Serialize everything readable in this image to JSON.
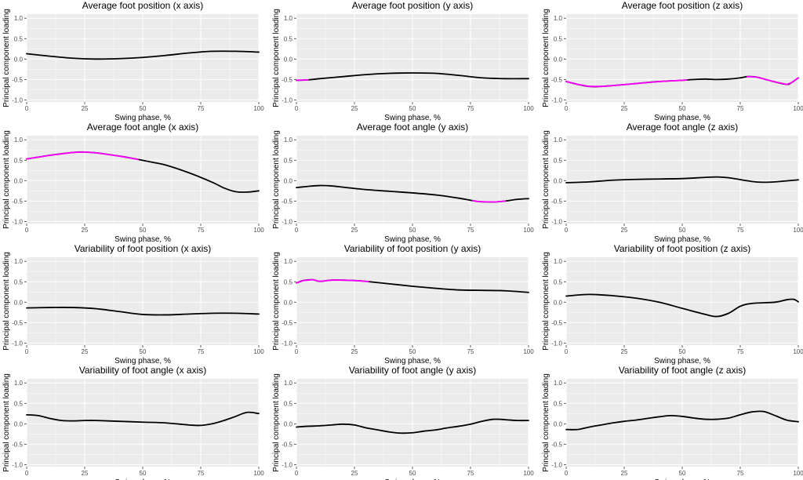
{
  "figure": {
    "xlabel": "Swing phase, %",
    "ylabel": "Principal component loading",
    "xticks": [
      0,
      25,
      50,
      75,
      100
    ],
    "yticks": [
      1.0,
      0.5,
      0.0,
      -0.5,
      -1.0
    ],
    "ytick_labels": [
      "1.0",
      "0.5",
      "0.0",
      "-0.5",
      "-1.0"
    ],
    "xlim": [
      0,
      100
    ],
    "ylim": [
      -1.05,
      1.1
    ],
    "colors": {
      "panel_bg": "#ebebeb",
      "grid": "#ffffff",
      "line": "#000000",
      "highlight": "#ff00ff"
    }
  },
  "chart_data": [
    {
      "type": "line",
      "title": "Average foot position (x axis)",
      "xlabel": "Swing phase, %",
      "ylabel": "Principal component loading",
      "x": [
        0,
        10,
        20,
        30,
        40,
        50,
        60,
        70,
        80,
        90,
        100
      ],
      "y": [
        0.13,
        0.07,
        0.02,
        0.0,
        0.01,
        0.04,
        0.09,
        0.15,
        0.19,
        0.19,
        0.17
      ],
      "highlight": []
    },
    {
      "type": "line",
      "title": "Average foot position (y axis)",
      "xlabel": "Swing phase, %",
      "ylabel": "Principal component loading",
      "x": [
        0,
        5,
        10,
        20,
        30,
        40,
        50,
        60,
        70,
        80,
        90,
        100
      ],
      "y": [
        -0.52,
        -0.51,
        -0.48,
        -0.43,
        -0.38,
        -0.35,
        -0.34,
        -0.35,
        -0.4,
        -0.46,
        -0.48,
        -0.48
      ],
      "highlight": [
        [
          0,
          5
        ]
      ]
    },
    {
      "type": "line",
      "title": "Average foot position (z axis)",
      "xlabel": "Swing phase, %",
      "ylabel": "Principal component loading",
      "x": [
        0,
        5,
        10,
        15,
        20,
        30,
        40,
        50,
        55,
        60,
        65,
        70,
        75,
        78,
        82,
        86,
        90,
        95,
        97,
        100
      ],
      "y": [
        -0.55,
        -0.62,
        -0.67,
        -0.67,
        -0.65,
        -0.6,
        -0.55,
        -0.52,
        -0.5,
        -0.49,
        -0.5,
        -0.49,
        -0.46,
        -0.43,
        -0.44,
        -0.5,
        -0.56,
        -0.62,
        -0.58,
        -0.46
      ],
      "highlight": [
        [
          0,
          52
        ],
        [
          78,
          100
        ]
      ]
    },
    {
      "type": "line",
      "title": "Average foot angle (x axis)",
      "xlabel": "Swing phase, %",
      "ylabel": "Principal component loading",
      "x": [
        0,
        10,
        20,
        25,
        30,
        40,
        48,
        55,
        60,
        70,
        80,
        85,
        90,
        95,
        100
      ],
      "y": [
        0.53,
        0.62,
        0.69,
        0.7,
        0.68,
        0.6,
        0.52,
        0.44,
        0.38,
        0.19,
        -0.04,
        -0.18,
        -0.27,
        -0.28,
        -0.25
      ],
      "highlight": [
        [
          0,
          48
        ]
      ]
    },
    {
      "type": "line",
      "title": "Average foot angle (y axis)",
      "xlabel": "Swing phase, %",
      "ylabel": "Principal component loading",
      "x": [
        0,
        5,
        10,
        15,
        20,
        30,
        40,
        50,
        60,
        70,
        78,
        82,
        86,
        90,
        95,
        100
      ],
      "y": [
        -0.17,
        -0.14,
        -0.12,
        -0.13,
        -0.16,
        -0.22,
        -0.26,
        -0.3,
        -0.35,
        -0.43,
        -0.51,
        -0.52,
        -0.52,
        -0.5,
        -0.46,
        -0.44
      ],
      "highlight": [
        [
          76,
          90
        ]
      ]
    },
    {
      "type": "line",
      "title": "Average foot angle (z axis)",
      "xlabel": "Swing phase, %",
      "ylabel": "Principal component loading",
      "x": [
        0,
        10,
        20,
        30,
        40,
        50,
        60,
        65,
        70,
        80,
        85,
        90,
        100
      ],
      "y": [
        -0.05,
        -0.03,
        0.01,
        0.03,
        0.04,
        0.05,
        0.08,
        0.09,
        0.07,
        -0.02,
        -0.04,
        -0.03,
        0.02
      ],
      "highlight": []
    },
    {
      "type": "line",
      "title": "Variability of foot position (x axis)",
      "xlabel": "Swing phase, %",
      "ylabel": "Principal component loading",
      "x": [
        0,
        10,
        20,
        30,
        40,
        50,
        60,
        70,
        80,
        90,
        100
      ],
      "y": [
        -0.14,
        -0.13,
        -0.13,
        -0.16,
        -0.23,
        -0.3,
        -0.31,
        -0.29,
        -0.27,
        -0.27,
        -0.29
      ],
      "highlight": []
    },
    {
      "type": "line",
      "title": "Variability of foot position (y axis)",
      "xlabel": "Swing phase, %",
      "ylabel": "Principal component loading",
      "x": [
        0,
        3,
        7,
        10,
        15,
        20,
        25,
        30,
        40,
        50,
        60,
        70,
        80,
        90,
        100
      ],
      "y": [
        0.47,
        0.53,
        0.55,
        0.51,
        0.54,
        0.54,
        0.53,
        0.51,
        0.45,
        0.39,
        0.34,
        0.3,
        0.29,
        0.28,
        0.24
      ],
      "highlight": [
        [
          0,
          31
        ]
      ]
    },
    {
      "type": "line",
      "title": "Variability of foot position (z axis)",
      "xlabel": "Swing phase, %",
      "ylabel": "Principal component loading",
      "x": [
        0,
        10,
        20,
        30,
        40,
        50,
        60,
        65,
        70,
        75,
        80,
        90,
        95,
        98,
        100
      ],
      "y": [
        0.15,
        0.19,
        0.16,
        0.1,
        0.0,
        -0.15,
        -0.3,
        -0.35,
        -0.27,
        -0.1,
        -0.03,
        0.0,
        0.06,
        0.07,
        0.01
      ],
      "highlight": []
    },
    {
      "type": "line",
      "title": "Variability of foot angle (x axis)",
      "xlabel": "Swing phase, %",
      "ylabel": "Principal component loading",
      "x": [
        0,
        5,
        10,
        15,
        20,
        25,
        30,
        40,
        50,
        60,
        70,
        75,
        80,
        85,
        90,
        95,
        100
      ],
      "y": [
        0.22,
        0.2,
        0.13,
        0.08,
        0.07,
        0.08,
        0.08,
        0.06,
        0.04,
        0.02,
        -0.03,
        -0.04,
        0.0,
        0.08,
        0.18,
        0.28,
        0.25
      ],
      "highlight": []
    },
    {
      "type": "line",
      "title": "Variability of foot angle (y axis)",
      "xlabel": "Swing phase, %",
      "ylabel": "Principal component loading",
      "x": [
        0,
        5,
        10,
        15,
        20,
        25,
        30,
        35,
        40,
        45,
        50,
        55,
        60,
        65,
        70,
        75,
        80,
        85,
        90,
        95,
        100
      ],
      "y": [
        -0.08,
        -0.06,
        -0.05,
        -0.03,
        -0.01,
        -0.03,
        -0.1,
        -0.15,
        -0.2,
        -0.23,
        -0.22,
        -0.18,
        -0.15,
        -0.1,
        -0.06,
        -0.01,
        0.06,
        0.11,
        0.1,
        0.08,
        0.08
      ],
      "highlight": []
    },
    {
      "type": "line",
      "title": "Variability of foot angle (z axis)",
      "xlabel": "Swing phase, %",
      "ylabel": "Principal component loading",
      "x": [
        0,
        5,
        10,
        15,
        20,
        25,
        30,
        35,
        40,
        45,
        50,
        55,
        60,
        65,
        70,
        75,
        80,
        85,
        90,
        95,
        100
      ],
      "y": [
        -0.14,
        -0.14,
        -0.08,
        -0.03,
        0.02,
        0.06,
        0.09,
        0.13,
        0.17,
        0.2,
        0.18,
        0.14,
        0.11,
        0.11,
        0.14,
        0.22,
        0.29,
        0.3,
        0.2,
        0.09,
        0.05
      ],
      "highlight": []
    }
  ]
}
